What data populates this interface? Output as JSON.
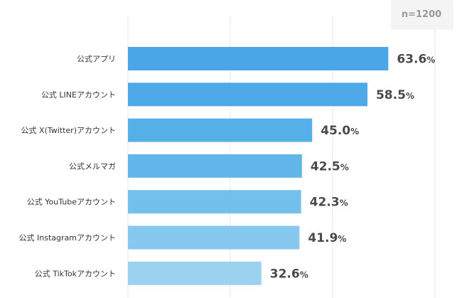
{
  "sample_note": "n=1200",
  "colors": {
    "grid": "#e4e4e4",
    "note_bg": "#f4f4f4",
    "bars": [
      "#4aa6e6",
      "#4eaae7",
      "#56b0e8",
      "#62b7ea",
      "#74c0ec",
      "#86c8ee",
      "#9bd2f0"
    ]
  },
  "chart_data": {
    "type": "bar",
    "orientation": "horizontal",
    "categories": [
      "公式アプリ",
      "公式 LINEアカウント",
      "公式 X(Twitter)アカウント",
      "公式メルマガ",
      "公式 YouTubeアカウント",
      "公式 Instagramアカウント",
      "公式 TikTokアカウント"
    ],
    "values": [
      63.6,
      58.5,
      45.0,
      42.5,
      42.3,
      41.9,
      32.6
    ],
    "value_labels": [
      "63.6",
      "58.5",
      "45.0",
      "42.5",
      "42.3",
      "41.9",
      "32.6"
    ],
    "unit": "%",
    "xlim": [
      0,
      75
    ],
    "grid": true,
    "legend": "none"
  }
}
